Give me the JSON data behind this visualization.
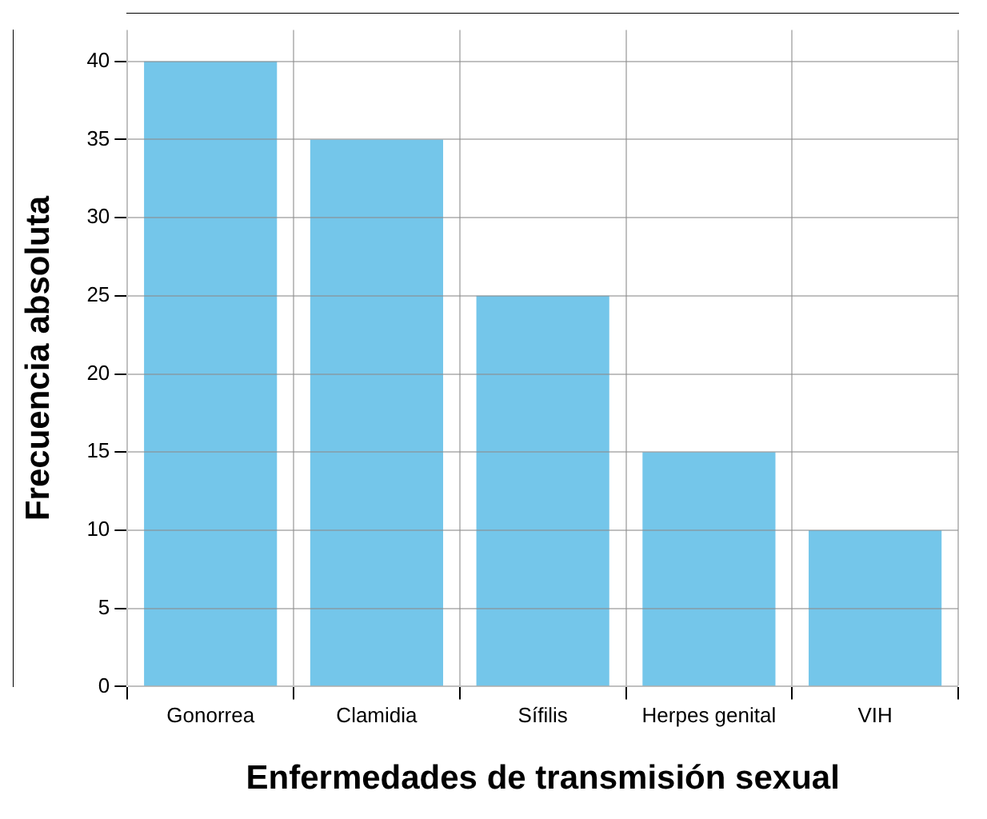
{
  "chart_data": {
    "type": "bar",
    "xlabel": "Enfermedades de transmisión sexual",
    "ylabel": "Frecuencia absoluta",
    "categories": [
      "Gonorrea",
      "Clamidia",
      "Sífilis",
      "Herpes genital",
      "VIH"
    ],
    "values": [
      40,
      35,
      25,
      15,
      10
    ],
    "color": "#74c6ea",
    "ylim": [
      0,
      42
    ],
    "yticks": [
      0,
      5,
      10,
      15,
      20,
      25,
      30,
      35,
      40
    ],
    "grid": true
  }
}
